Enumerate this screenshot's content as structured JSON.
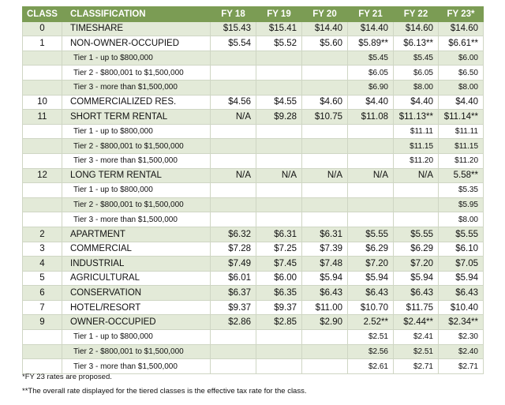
{
  "headers": [
    "CLASS",
    "CLASSIFICATION",
    "FY 18",
    "FY 19",
    "FY 20",
    "FY 21",
    "FY 22",
    "FY 23*"
  ],
  "rows": [
    {
      "cls": "0",
      "name": "TIMESHARE",
      "sub": false,
      "v": [
        "$15.43",
        "$15.41",
        "$14.40",
        "$14.40",
        "$14.60",
        "$14.60"
      ]
    },
    {
      "cls": "1",
      "name": "NON-OWNER-OCCUPIED",
      "sub": false,
      "v": [
        "$5.54",
        "$5.52",
        "$5.60",
        "$5.89**",
        "$6.13**",
        "$6.61**"
      ]
    },
    {
      "cls": "",
      "name": "Tier 1 - up to $800,000",
      "sub": true,
      "v": [
        "",
        "",
        "",
        "$5.45",
        "$5.45",
        "$6.00"
      ]
    },
    {
      "cls": "",
      "name": "Tier 2 - $800,001 to $1,500,000",
      "sub": true,
      "v": [
        "",
        "",
        "",
        "$6.05",
        "$6.05",
        "$6.50"
      ]
    },
    {
      "cls": "",
      "name": "Tier 3 - more than $1,500,000",
      "sub": true,
      "v": [
        "",
        "",
        "",
        "$6.90",
        "$8.00",
        "$8.00"
      ]
    },
    {
      "cls": "10",
      "name": "COMMERCIALIZED RES.",
      "sub": false,
      "v": [
        "$4.56",
        "$4.55",
        "$4.60",
        "$4.40",
        "$4.40",
        "$4.40"
      ]
    },
    {
      "cls": "11",
      "name": "SHORT TERM RENTAL",
      "sub": false,
      "v": [
        "N/A",
        "$9.28",
        "$10.75",
        "$11.08",
        "$11.13**",
        "$11.14**"
      ]
    },
    {
      "cls": "",
      "name": "Tier 1 - up to $800,000",
      "sub": true,
      "v": [
        "",
        "",
        "",
        "",
        "$11.11",
        "$11.11"
      ]
    },
    {
      "cls": "",
      "name": "Tier 2 - $800,001 to $1,500,000",
      "sub": true,
      "v": [
        "",
        "",
        "",
        "",
        "$11.15",
        "$11.15"
      ]
    },
    {
      "cls": "",
      "name": "Tier 3 - more than $1,500,000",
      "sub": true,
      "v": [
        "",
        "",
        "",
        "",
        "$11.20",
        "$11.20"
      ]
    },
    {
      "cls": "12",
      "name": "LONG TERM RENTAL",
      "sub": false,
      "v": [
        "N/A",
        "N/A",
        "N/A",
        "N/A",
        "N/A",
        "5.58**"
      ]
    },
    {
      "cls": "",
      "name": "Tier 1 - up to $800,000",
      "sub": true,
      "v": [
        "",
        "",
        "",
        "",
        "",
        "$5.35"
      ]
    },
    {
      "cls": "",
      "name": "Tier 2 - $800,001 to $1,500,000",
      "sub": true,
      "v": [
        "",
        "",
        "",
        "",
        "",
        "$5.95"
      ]
    },
    {
      "cls": "",
      "name": "Tier 3 - more than $1,500,000",
      "sub": true,
      "v": [
        "",
        "",
        "",
        "",
        "",
        "$8.00"
      ]
    },
    {
      "cls": "2",
      "name": "APARTMENT",
      "sub": false,
      "v": [
        "$6.32",
        "$6.31",
        "$6.31",
        "$5.55",
        "$5.55",
        "$5.55"
      ]
    },
    {
      "cls": "3",
      "name": "COMMERCIAL",
      "sub": false,
      "v": [
        "$7.28",
        "$7.25",
        "$7.39",
        "$6.29",
        "$6.29",
        "$6.10"
      ]
    },
    {
      "cls": "4",
      "name": "INDUSTRIAL",
      "sub": false,
      "v": [
        "$7.49",
        "$7.45",
        "$7.48",
        "$7.20",
        "$7.20",
        "$7.05"
      ]
    },
    {
      "cls": "5",
      "name": "AGRICULTURAL",
      "sub": false,
      "v": [
        "$6.01",
        "$6.00",
        "$5.94",
        "$5.94",
        "$5.94",
        "$5.94"
      ]
    },
    {
      "cls": "6",
      "name": "CONSERVATION",
      "sub": false,
      "v": [
        "$6.37",
        "$6.35",
        "$6.43",
        "$6.43",
        "$6.43",
        "$6.43"
      ]
    },
    {
      "cls": "7",
      "name": "HOTEL/RESORT",
      "sub": false,
      "v": [
        "$9.37",
        "$9.37",
        "$11.00",
        "$10.70",
        "$11.75",
        "$10.40"
      ]
    },
    {
      "cls": "9",
      "name": "OWNER-OCCUPIED",
      "sub": false,
      "v": [
        "$2.86",
        "$2.85",
        "$2.90",
        "2.52**",
        "$2.44**",
        "$2.34**"
      ]
    },
    {
      "cls": "",
      "name": "Tier 1 - up to $800,000",
      "sub": true,
      "v": [
        "",
        "",
        "",
        "$2.51",
        "$2.41",
        "$2.30"
      ]
    },
    {
      "cls": "",
      "name": "Tier 2 - $800,001 to $1,500,000",
      "sub": true,
      "v": [
        "",
        "",
        "",
        "$2.56",
        "$2.51",
        "$2.40"
      ]
    },
    {
      "cls": "",
      "name": "Tier 3 - more than $1,500,000",
      "sub": true,
      "v": [
        "",
        "",
        "",
        "$2.61",
        "$2.71",
        "$2.71"
      ]
    }
  ],
  "footnotes": [
    "*FY 23 rates are proposed.",
    "**The overall rate displayed for the tiered classes is the effective tax rate for the class."
  ],
  "colors": {
    "header_bg": "#7b9c54",
    "stripe": "#e3ead8"
  }
}
